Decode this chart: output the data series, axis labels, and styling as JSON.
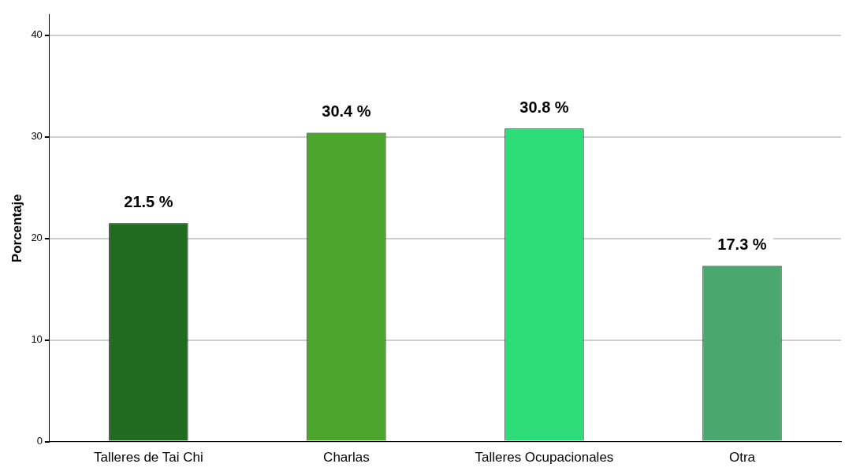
{
  "chart_data": {
    "type": "bar",
    "ylabel": "Porcentaje",
    "categories": [
      "Talleres de Tai Chi",
      "Charlas",
      "Talleres Ocupacionales",
      "Otra"
    ],
    "values": [
      21.5,
      30.4,
      30.8,
      17.3
    ],
    "colors": [
      "#1f6b1f",
      "#4ca52c",
      "#2edc78",
      "#4aa76e"
    ],
    "value_labels": [
      "21.5 %",
      "30.4 %",
      "30.8 %",
      "17.3 %"
    ],
    "ylim": [
      0,
      42
    ],
    "yticks": [
      0,
      10,
      20,
      30,
      40
    ],
    "grid": "y",
    "legend": false
  }
}
